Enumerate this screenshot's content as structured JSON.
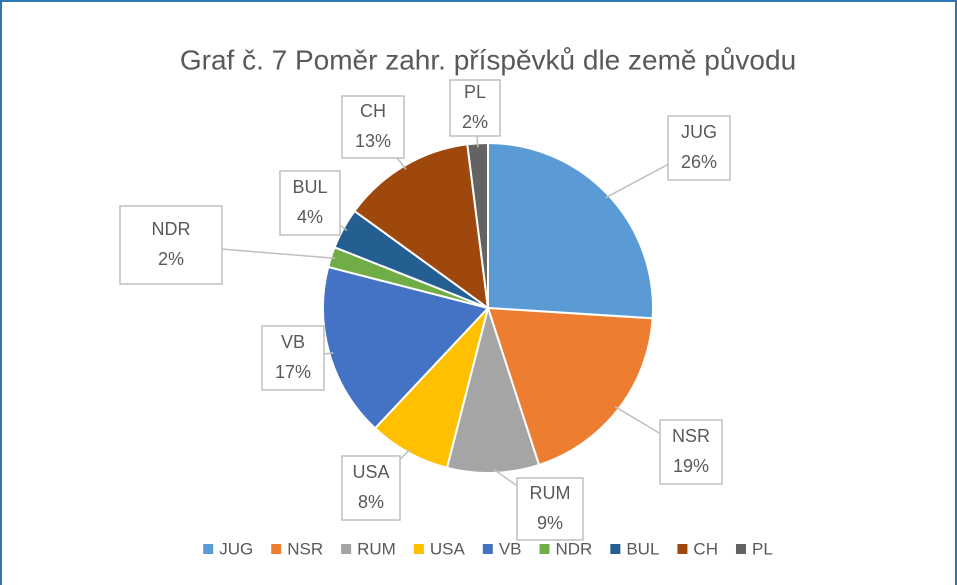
{
  "chart_data": {
    "type": "pie",
    "title": "Graf č. 7 Poměr zahr. příspěvků dle země původu",
    "categories": [
      "JUG",
      "NSR",
      "RUM",
      "USA",
      "VB",
      "NDR",
      "BUL",
      "CH",
      "PL"
    ],
    "values": [
      26,
      19,
      9,
      8,
      17,
      2,
      4,
      13,
      2
    ],
    "value_labels": [
      "26%",
      "19%",
      "9%",
      "8%",
      "17%",
      "2%",
      "4%",
      "13%",
      "2%"
    ],
    "colors": [
      "#5b9bd5",
      "#ed7d31",
      "#a5a5a5",
      "#ffc000",
      "#4472c4",
      "#70ad47",
      "#255e91",
      "#9e480e",
      "#636363"
    ],
    "legend": "bottom"
  }
}
